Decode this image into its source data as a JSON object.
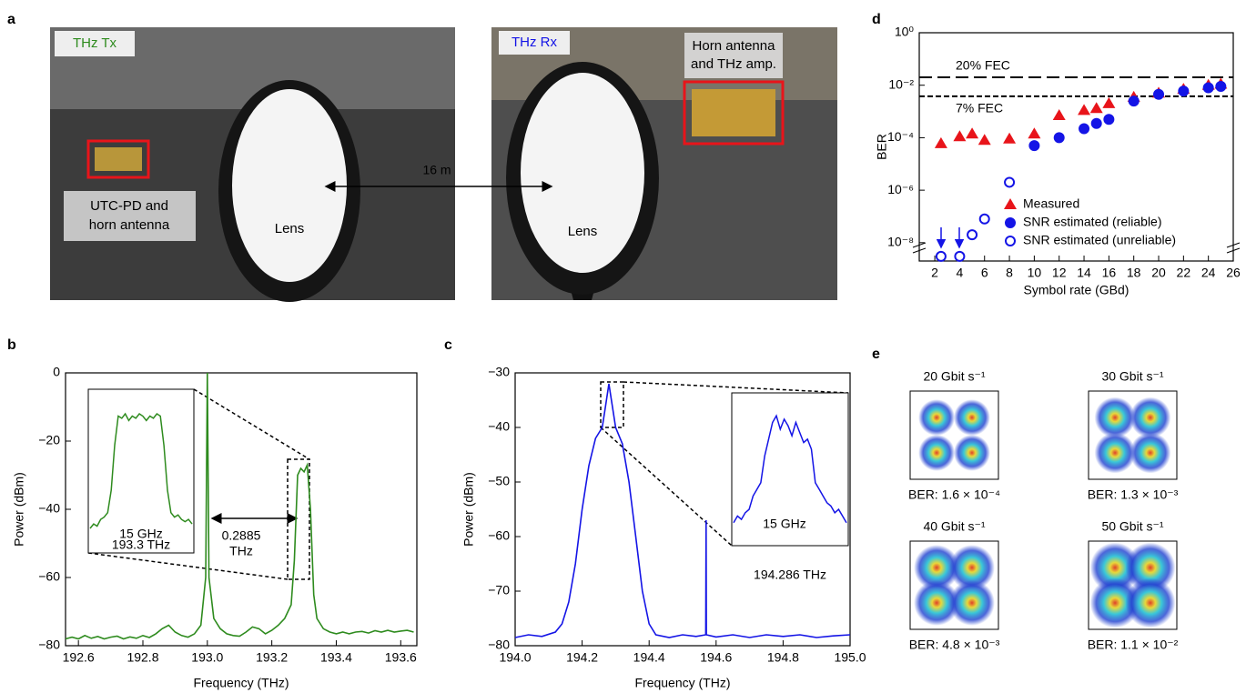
{
  "panel_a": {
    "label": "a",
    "tx": {
      "title": "THz Tx",
      "device": [
        "UTC-PD and",
        "horn antenna"
      ],
      "lens": "Lens"
    },
    "rx": {
      "title": "THz Rx",
      "device": [
        "Horn antenna",
        "and THz amp."
      ],
      "lens": "Lens"
    },
    "distance": "16 m"
  },
  "chart_data": [
    {
      "label": "b",
      "type": "line",
      "xlabel": "Frequency (THz)",
      "ylabel": "Power (dBm)",
      "xlim": [
        192.56,
        193.65
      ],
      "xticks": [
        192.6,
        192.8,
        {
          "value": 193,
          "label": "193.0"
        },
        193.2,
        193.4,
        193.6
      ],
      "ylim": [
        -80,
        0
      ],
      "yticks": [
        0,
        {
          "value": -20,
          "label": "−20"
        },
        {
          "value": -40,
          "label": "−40"
        },
        {
          "value": -60,
          "label": "−60"
        },
        {
          "value": -80,
          "label": "−80"
        }
      ],
      "series": [
        {
          "color": "#2e8b1e",
          "x": [
            192.56,
            192.58,
            192.6,
            192.62,
            192.64,
            192.66,
            192.68,
            192.7,
            192.72,
            192.74,
            192.76,
            192.78,
            192.8,
            192.82,
            192.84,
            192.86,
            192.88,
            192.9,
            192.92,
            192.94,
            192.96,
            192.98,
            192.995,
            193.0,
            193.005,
            193.02,
            193.04,
            193.06,
            193.08,
            193.1,
            193.12,
            193.14,
            193.16,
            193.18,
            193.2,
            193.22,
            193.24,
            193.26,
            193.27,
            193.28,
            193.29,
            193.3,
            193.31,
            193.32,
            193.33,
            193.34,
            193.36,
            193.38,
            193.4,
            193.42,
            193.44,
            193.46,
            193.48,
            193.5,
            193.52,
            193.54,
            193.56,
            193.58,
            193.6,
            193.62,
            193.64
          ],
          "values": [
            -78,
            -77.5,
            -78,
            -77,
            -77.8,
            -77.3,
            -78,
            -77.5,
            -77.2,
            -78,
            -77.4,
            -77.8,
            -77,
            -77.6,
            -76.5,
            -75,
            -74,
            -76,
            -77,
            -77.5,
            -76.5,
            -74,
            -60,
            0,
            -60,
            -72,
            -75,
            -76.5,
            -77,
            -77.2,
            -76,
            -74.5,
            -75,
            -76.5,
            -75.5,
            -74,
            -72,
            -68,
            -55,
            -30,
            -28,
            -29,
            -27,
            -40,
            -65,
            -72,
            -75,
            -76,
            -76.5,
            -76,
            -76.5,
            -76,
            -75.8,
            -76.3,
            -75.6,
            -76,
            -75.5,
            -76,
            -75.7,
            -75.5,
            -76
          ]
        }
      ],
      "inset": {
        "values": [
          -62,
          -60,
          -61,
          -58,
          -57,
          -55,
          -45,
          -25,
          -12,
          -13,
          -11,
          -14,
          -12,
          -13,
          -11,
          -12,
          -14,
          -12,
          -13,
          -11,
          -12,
          -25,
          -45,
          -55,
          -57,
          -56,
          -58,
          -59,
          -58,
          -60
        ],
        "annotations": [
          "15 GHz",
          "193.3 THz"
        ]
      },
      "annotations": [
        "0.2885",
        "THz"
      ]
    },
    {
      "label": "c",
      "type": "line",
      "xlabel": "Frequency (THz)",
      "ylabel": "Power (dBm)",
      "xlim": [
        194.0,
        195.0
      ],
      "xticks": [
        {
          "value": 194,
          "label": "194.0"
        },
        194.2,
        194.4,
        194.6,
        194.8,
        {
          "value": 195,
          "label": "195.0"
        }
      ],
      "ylim": [
        -80,
        -30
      ],
      "yticks": [
        {
          "value": -30,
          "label": "−30"
        },
        {
          "value": -40,
          "label": "−40"
        },
        {
          "value": -50,
          "label": "−50"
        },
        {
          "value": -60,
          "label": "−60"
        },
        {
          "value": -70,
          "label": "−70"
        },
        {
          "value": -80,
          "label": "−80"
        }
      ],
      "series": [
        {
          "color": "#1414e6",
          "x": [
            194.0,
            194.04,
            194.08,
            194.12,
            194.14,
            194.16,
            194.18,
            194.2,
            194.22,
            194.24,
            194.26,
            194.27,
            194.28,
            194.29,
            194.3,
            194.32,
            194.34,
            194.36,
            194.38,
            194.4,
            194.42,
            194.46,
            194.5,
            194.54,
            194.569,
            194.57,
            194.571,
            194.6,
            194.65,
            194.7,
            194.75,
            194.8,
            194.85,
            194.9,
            194.95,
            195.0
          ],
          "values": [
            -78.5,
            -78,
            -78.3,
            -77.5,
            -76,
            -72,
            -65,
            -55,
            -47,
            -42,
            -40,
            -36,
            -32,
            -36,
            -40,
            -43,
            -50,
            -60,
            -70,
            -76,
            -78,
            -78.5,
            -78,
            -78.3,
            -78,
            -57,
            -78,
            -78.4,
            -78,
            -78.5,
            -78,
            -78.3,
            -78,
            -78.5,
            -78.2,
            -78
          ]
        }
      ],
      "inset": {
        "values": [
          -70,
          -68,
          -69,
          -67,
          -66,
          -62,
          -60,
          -58,
          -50,
          -45,
          -40,
          -38,
          -42,
          -39,
          -41,
          -44,
          -40,
          -43,
          -46,
          -45,
          -48,
          -58,
          -60,
          -62,
          -64,
          -65,
          -67,
          -66,
          -68,
          -70
        ],
        "annotations": [
          "15 GHz",
          "194.286 THz"
        ]
      }
    },
    {
      "label": "d",
      "type": "scatter",
      "log_y": true,
      "xlabel": "Symbol rate (GBd)",
      "ylabel": "BER",
      "xlim": [
        0.75,
        26
      ],
      "xticks": [
        2,
        4,
        6,
        8,
        10,
        12,
        14,
        16,
        18,
        20,
        22,
        24,
        26
      ],
      "ylim": [
        2e-09,
        1
      ],
      "yticks": [
        {
          "value": 1,
          "label": "10⁰"
        },
        {
          "value": 0.01,
          "label": "10⁻²"
        },
        {
          "value": 0.0001,
          "label": "10⁻⁴"
        },
        {
          "value": 1e-06,
          "label": "10⁻⁶"
        },
        {
          "value": 1e-08,
          "label": "10⁻⁸"
        }
      ],
      "thresholds": [
        {
          "label": "20% FEC",
          "value": 0.02
        },
        {
          "label": "7% FEC",
          "value": 0.0038
        }
      ],
      "legend": "lower right",
      "series": [
        {
          "name": "Measured",
          "color": "#e8141a",
          "marker": "triangle",
          "x": [
            2.5,
            4,
            5,
            6,
            8,
            10,
            12,
            14,
            15,
            16,
            18,
            20,
            22,
            24,
            25
          ],
          "values": [
            6e-05,
            0.00011,
            0.00014,
            8e-05,
            9e-05,
            0.00014,
            0.0007,
            0.0011,
            0.0013,
            0.002,
            0.0035,
            0.005,
            0.007,
            0.01,
            0.011
          ]
        },
        {
          "name": "SNR estimated (reliable)",
          "color": "#1414e6",
          "marker": "circle",
          "x": [
            10,
            12,
            14,
            15,
            16,
            18,
            20,
            22,
            24,
            25
          ],
          "values": [
            5e-05,
            0.0001,
            0.00022,
            0.00035,
            0.0005,
            0.0025,
            0.0045,
            0.006,
            0.008,
            0.009
          ]
        },
        {
          "name": "SNR estimated (unreliable)",
          "color": "#1414e6",
          "marker": "open-circle",
          "x": [
            2.5,
            4,
            5,
            6,
            8
          ],
          "values": [
            3e-09,
            3e-09,
            2e-08,
            8e-08,
            2e-06
          ]
        }
      ]
    }
  ],
  "panel_e": {
    "label": "e",
    "constellations": [
      {
        "title": "20 Gbit s⁻¹",
        "ber": "BER: 1.6 × 10⁻⁴"
      },
      {
        "title": "30 Gbit s⁻¹",
        "ber": "BER: 1.3 × 10⁻³"
      },
      {
        "title": "40 Gbit s⁻¹",
        "ber": "BER: 4.8 × 10⁻³"
      },
      {
        "title": "50 Gbit s⁻¹",
        "ber": "BER: 1.1 × 10⁻²"
      }
    ]
  }
}
